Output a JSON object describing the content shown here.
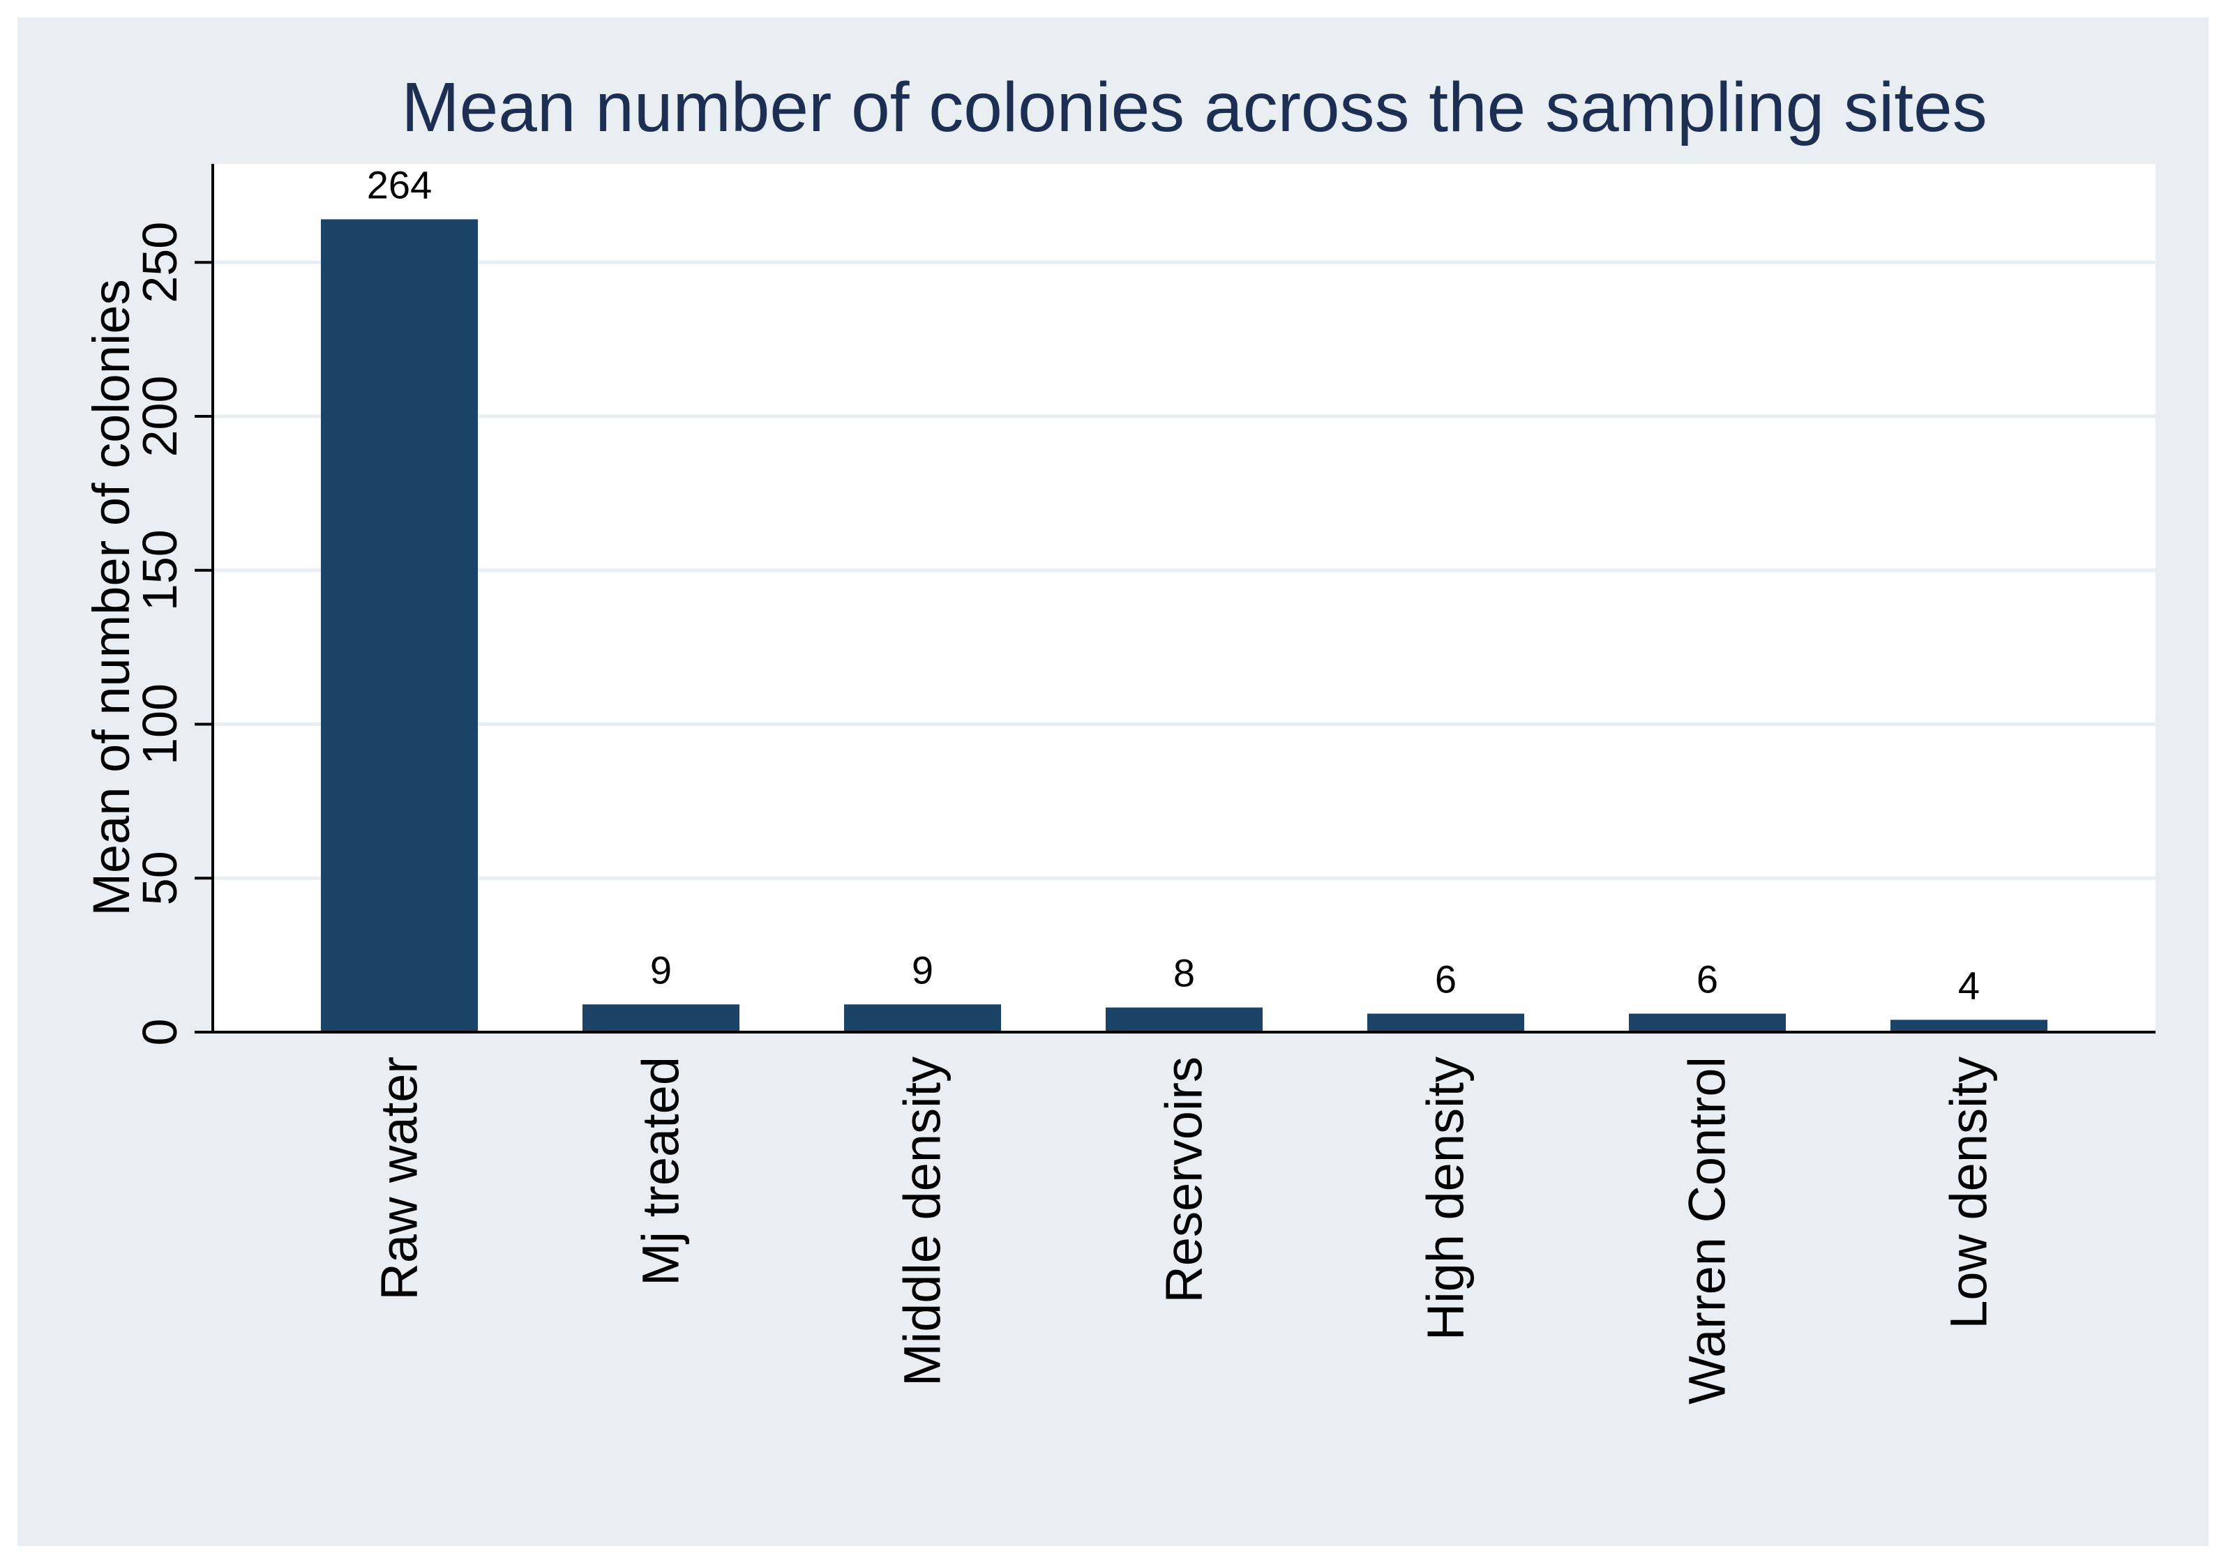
{
  "chart_data": {
    "type": "bar",
    "title": "Mean number of colonies across the sampling sites",
    "xlabel": "",
    "ylabel": "Mean of number of colonies",
    "categories": [
      "Raw water",
      "Mj treated",
      "Middle density",
      "Reservoirs",
      "High density",
      "Warren Control",
      "Low density"
    ],
    "values": [
      264,
      9,
      9,
      8,
      6,
      6,
      4
    ],
    "value_labels": [
      "264",
      "9",
      "9",
      "8",
      "6",
      "6",
      "4"
    ],
    "ylim": [
      0,
      282
    ],
    "yticks": [
      0,
      50,
      100,
      150,
      200,
      250
    ],
    "grid": true,
    "legend": "none",
    "colors": {
      "outer_background": "#e8eef1",
      "plot_background": "#ffffff",
      "bar": "#1b4368",
      "gridline": "#e8eef1",
      "title": "#1c2f52",
      "text": "#000000"
    }
  }
}
